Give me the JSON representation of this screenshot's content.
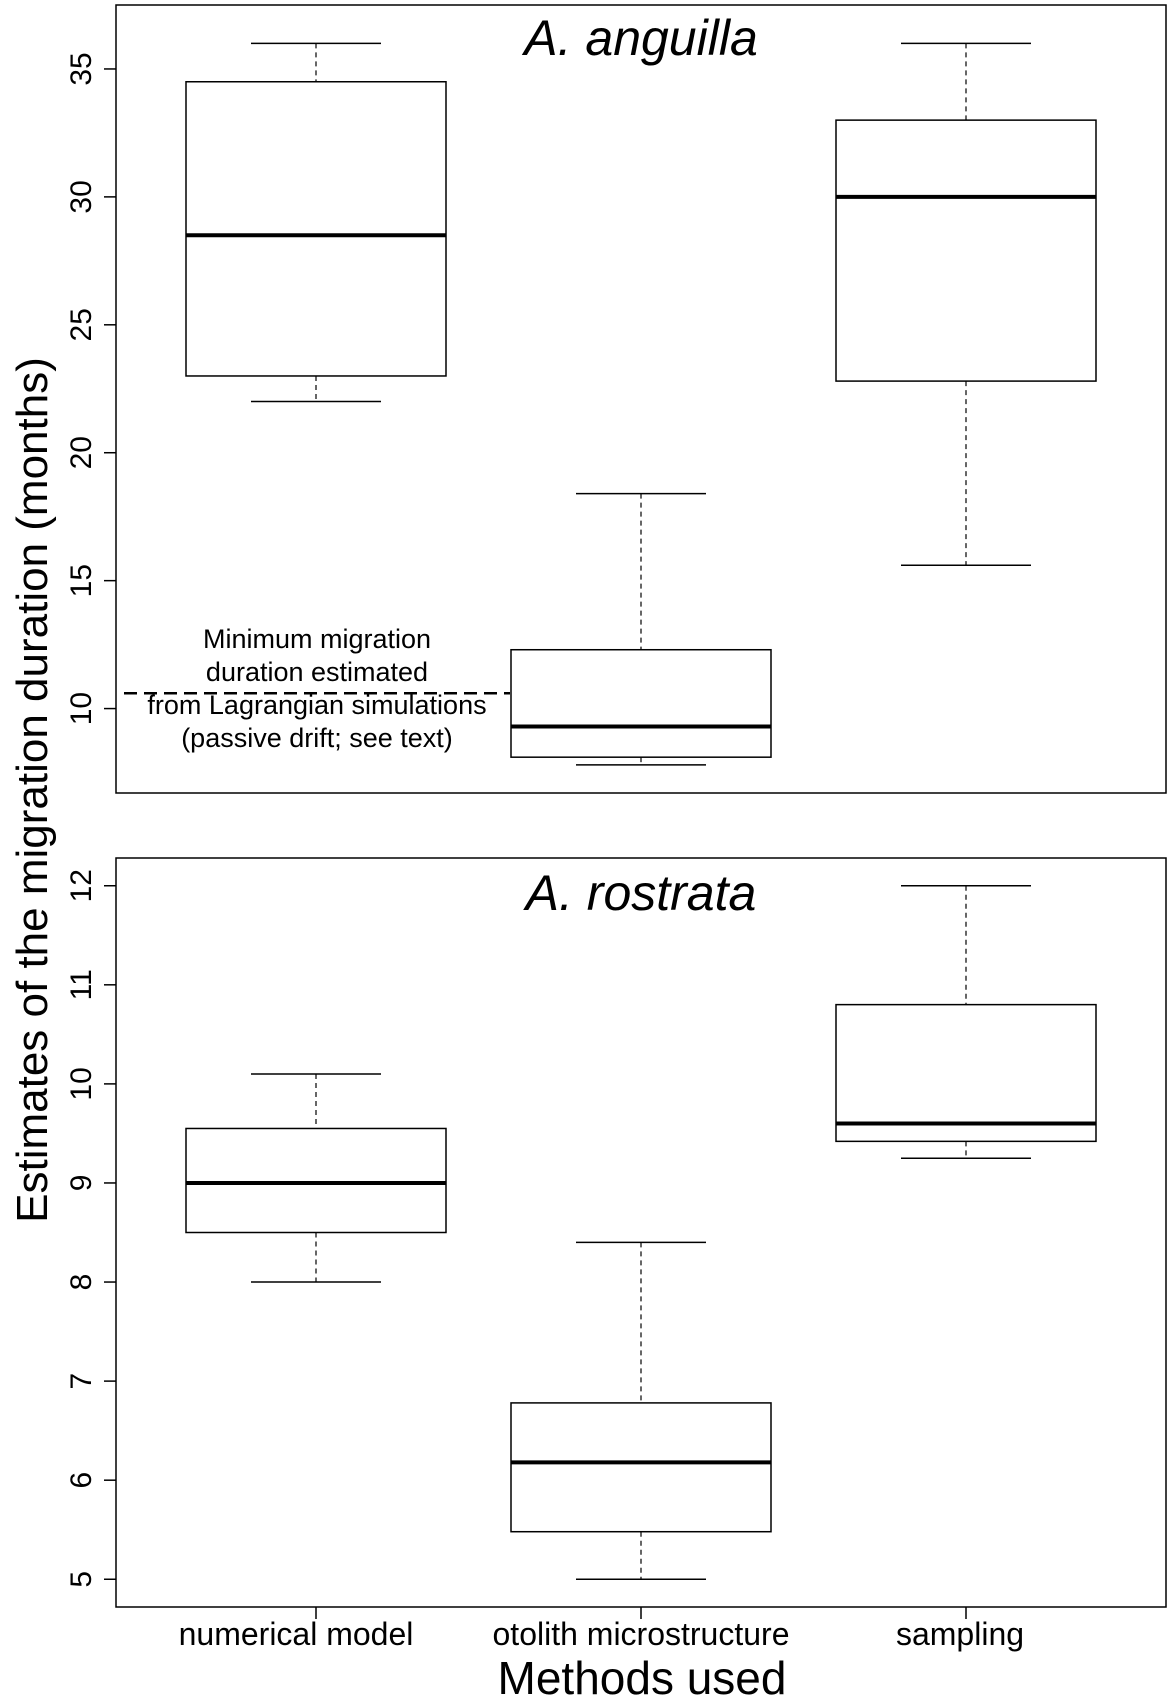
{
  "ylabel": "Estimates of the migration duration (months)",
  "xlabel": "Methods used",
  "categories": [
    "numerical model",
    "otolith microstructure",
    "sampling"
  ],
  "chart_data": [
    {
      "type": "boxplot",
      "title": "A. anguilla",
      "categories": [
        "numerical model",
        "otolith microstructure",
        "sampling"
      ],
      "ylim": [
        6.7,
        37.5
      ],
      "yticks": [
        10,
        15,
        20,
        25,
        30,
        35
      ],
      "boxes": [
        {
          "category": "numerical model",
          "min": 22,
          "q1": 23,
          "median": 28.5,
          "q3": 34.5,
          "max": 36
        },
        {
          "category": "otolith microstructure",
          "min": 7.8,
          "q1": 8.1,
          "median": 9.3,
          "q3": 12.3,
          "max": 18.4
        },
        {
          "category": "sampling",
          "min": 15.6,
          "q1": 22.8,
          "median": 30,
          "q3": 33,
          "max": 36
        }
      ],
      "reference_line": {
        "value": 10.6,
        "style": "dashed"
      },
      "annotation": [
        "Minimum migration",
        "duration estimated",
        "from Lagrangian simulations",
        "(passive drift; see text)"
      ]
    },
    {
      "type": "boxplot",
      "title": "A. rostrata",
      "categories": [
        "numerical model",
        "otolith microstructure",
        "sampling"
      ],
      "ylim": [
        4.72,
        12.28
      ],
      "yticks": [
        5,
        6,
        7,
        8,
        9,
        10,
        11,
        12
      ],
      "boxes": [
        {
          "category": "numerical model",
          "min": 8,
          "q1": 8.5,
          "median": 9,
          "q3": 9.55,
          "max": 10.1
        },
        {
          "category": "otolith microstructure",
          "min": 5,
          "q1": 5.48,
          "median": 6.18,
          "q3": 6.78,
          "max": 8.4
        },
        {
          "category": "sampling",
          "min": 9.25,
          "q1": 9.42,
          "median": 9.6,
          "q3": 10.8,
          "max": 12
        }
      ]
    }
  ]
}
